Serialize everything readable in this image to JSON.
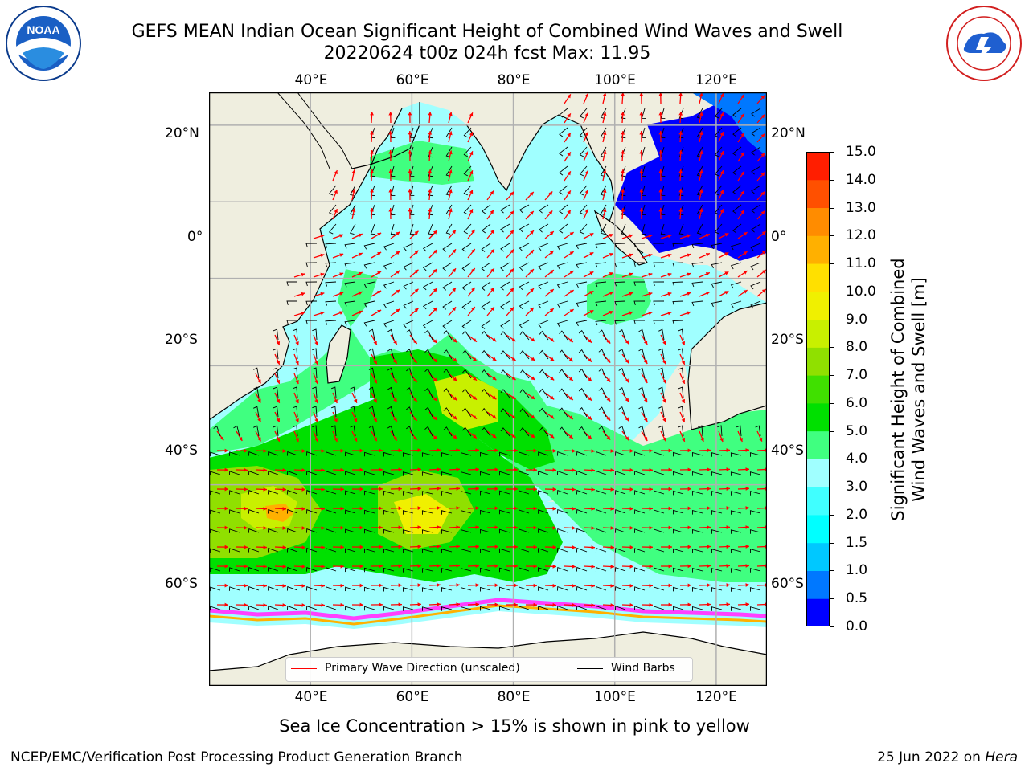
{
  "header": {
    "title_line1": "GEFS MEAN Indian Ocean Significant Height of Combined Wind Waves and Swell",
    "title_line2": "20220624 t00z 024h fcst   Max: 11.95"
  },
  "logos": {
    "left": "NOAA",
    "right": "NATIONAL WEATHER SERVICE"
  },
  "map": {
    "top_lon_labels": [
      "40°E",
      "60°E",
      "80°E",
      "100°E",
      "120°E"
    ],
    "bottom_lon_labels": [
      "40°E",
      "60°E",
      "80°E",
      "100°E",
      "120°E"
    ],
    "left_lat_labels": [
      "20°N",
      "0°",
      "20°S",
      "40°S",
      "60°S"
    ],
    "right_lat_labels": [
      "20°N",
      "0°",
      "20°S",
      "40°S",
      "60°S"
    ],
    "lon_values": [
      40,
      60,
      80,
      100,
      120
    ],
    "lat_values": [
      20,
      0,
      -20,
      -40,
      -60
    ],
    "lon_range": [
      20,
      130
    ],
    "lat_range": [
      -78,
      28
    ]
  },
  "legend": {
    "items": [
      {
        "label": "Primary Wave Direction (unscaled)",
        "color": "#ff0000"
      },
      {
        "label": "Wind Barbs",
        "color": "#000000"
      }
    ]
  },
  "colorbar": {
    "label_line1": "Significant Height of Combined",
    "label_line2": "Wind Waves and Swell [m]",
    "tick_labels": [
      "0.0",
      "0.5",
      "1.0",
      "1.5",
      "2.0",
      "3.0",
      "4.0",
      "5.0",
      "6.0",
      "7.0",
      "8.0",
      "9.0",
      "10.0",
      "11.0",
      "12.0",
      "13.0",
      "14.0",
      "15.0"
    ],
    "colors": [
      "#0000ff",
      "#0078ff",
      "#00c8ff",
      "#00ffff",
      "#40ffff",
      "#a0ffff",
      "#40ff80",
      "#00e000",
      "#40e000",
      "#90e000",
      "#c8f000",
      "#f0f000",
      "#ffe000",
      "#ffb000",
      "#ff8c00",
      "#ff5000",
      "#ff1e00"
    ]
  },
  "caption": "Sea Ice Concentration > 15% is shown in pink to yellow",
  "footer": {
    "left": "NCEP/EMC/Verification Post Processing Product Generation Branch",
    "right_date": "25 Jun 2022 on",
    "right_host": "Hera"
  },
  "colors": {
    "land": "#efeedf",
    "arrow": "#ff0000",
    "barb": "#000000",
    "grid": "#b0b0b0"
  }
}
